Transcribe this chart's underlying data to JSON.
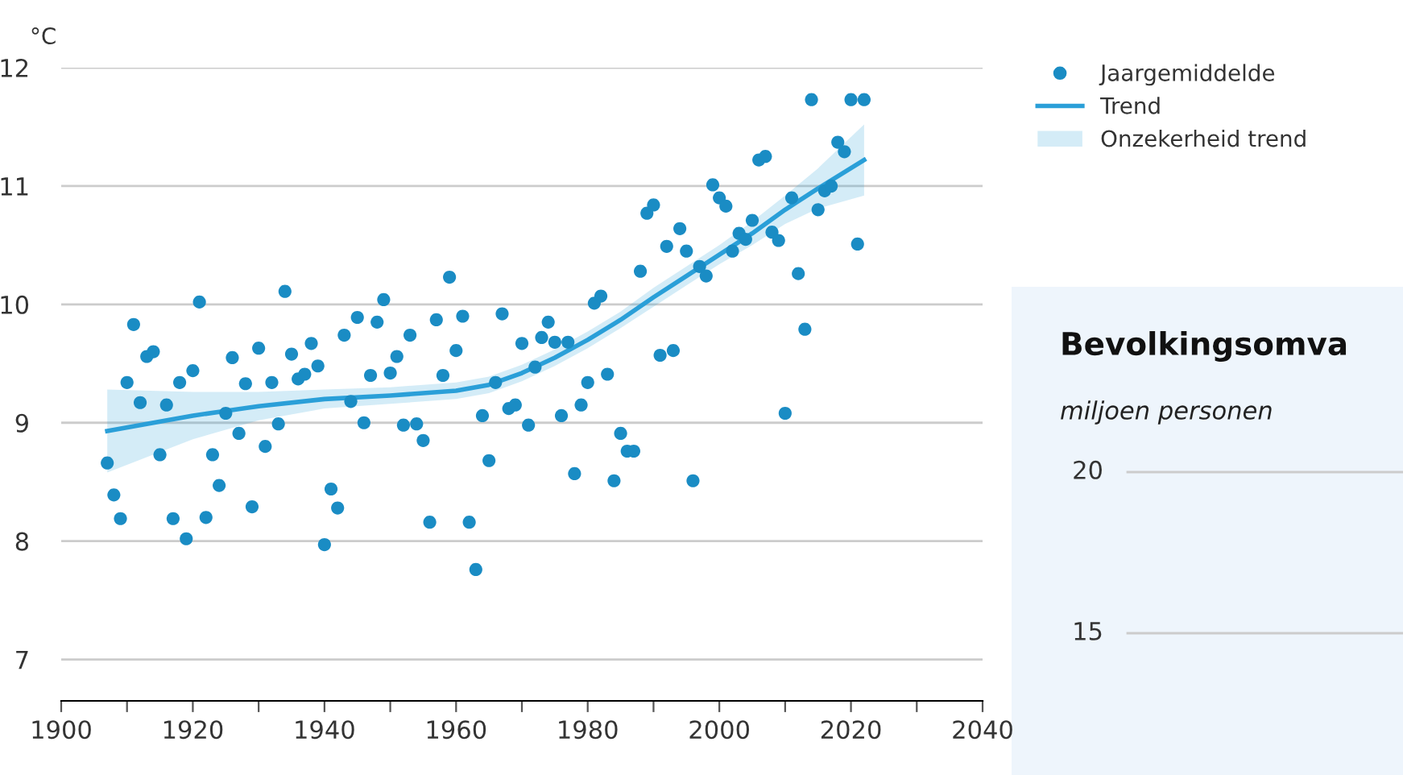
{
  "chart_data": [
    {
      "type": "scatter",
      "ylabel": "°C",
      "xlim": [
        1900,
        2040
      ],
      "ylim": [
        6.65,
        12
      ],
      "xticks": [
        1900,
        {
          "value": 1910,
          "label": null
        },
        1920,
        {
          "value": 1930,
          "label": null
        },
        1940,
        {
          "value": 1950,
          "label": null
        },
        1960,
        {
          "value": 1970,
          "label": null
        },
        1980,
        {
          "value": 1990,
          "label": null
        },
        2000,
        {
          "value": 2010,
          "label": null
        },
        2020,
        {
          "value": 2030,
          "label": null
        },
        2040
      ],
      "yticks": [
        7,
        8,
        9,
        10,
        11,
        12
      ],
      "grid": "y",
      "legend": "right",
      "annotations": [
        "Onzekerheid trend"
      ],
      "series": [
        {
          "name": "Trend",
          "type": "line",
          "color": "#2a9fd8",
          "x": [
            1907,
            1920,
            1930,
            1940,
            1950,
            1960,
            1965,
            1970,
            1975,
            1980,
            1985,
            1990,
            1995,
            2000,
            2005,
            2010,
            2015,
            2022
          ],
          "values": [
            8.93,
            9.06,
            9.14,
            9.2,
            9.23,
            9.27,
            9.32,
            9.42,
            9.55,
            9.7,
            9.87,
            10.06,
            10.24,
            10.42,
            10.6,
            10.8,
            10.98,
            11.22
          ],
          "lower": [
            8.58,
            8.86,
            9.02,
            9.12,
            9.16,
            9.2,
            9.25,
            9.35,
            9.48,
            9.63,
            9.8,
            9.98,
            10.16,
            10.34,
            10.5,
            10.68,
            10.81,
            10.92
          ],
          "upper": [
            9.28,
            9.26,
            9.26,
            9.28,
            9.3,
            9.34,
            9.39,
            9.49,
            9.62,
            9.77,
            9.94,
            10.14,
            10.32,
            10.5,
            10.7,
            10.92,
            11.15,
            11.52
          ]
        },
        {
          "name": "Jaargemiddelde",
          "color": "#1a8cc4",
          "marker": "circle",
          "x": [
            1907,
            1908,
            1909,
            1910,
            1911,
            1912,
            1913,
            1914,
            1915,
            1916,
            1917,
            1918,
            1919,
            1920,
            1921,
            1922,
            1923,
            1924,
            1925,
            1926,
            1927,
            1928,
            1929,
            1930,
            1931,
            1932,
            1933,
            1934,
            1935,
            1936,
            1937,
            1938,
            1939,
            1940,
            1941,
            1942,
            1943,
            1944,
            1945,
            1946,
            1947,
            1948,
            1949,
            1950,
            1951,
            1952,
            1953,
            1954,
            1955,
            1956,
            1957,
            1958,
            1959,
            1960,
            1961,
            1962,
            1963,
            1964,
            1965,
            1966,
            1967,
            1968,
            1969,
            1970,
            1971,
            1972,
            1973,
            1974,
            1975,
            1976,
            1977,
            1978,
            1979,
            1980,
            1981,
            1982,
            1983,
            1984,
            1985,
            1986,
            1987,
            1988,
            1989,
            1990,
            1991,
            1992,
            1993,
            1994,
            1995,
            1996,
            1997,
            1998,
            1999,
            2000,
            2001,
            2002,
            2003,
            2004,
            2005,
            2006,
            2007,
            2008,
            2009,
            2010,
            2011,
            2012,
            2013,
            2014,
            2015,
            2016,
            2017,
            2018,
            2019,
            2020,
            2021,
            2022
          ],
          "values": [
            8.66,
            8.39,
            8.19,
            9.34,
            9.83,
            9.17,
            9.56,
            9.6,
            8.73,
            9.15,
            8.19,
            9.34,
            8.02,
            9.44,
            10.02,
            8.2,
            8.73,
            8.47,
            9.08,
            9.55,
            8.91,
            9.33,
            8.29,
            9.63,
            8.8,
            9.34,
            8.99,
            10.11,
            9.58,
            9.37,
            9.41,
            9.67,
            9.48,
            7.97,
            8.44,
            8.28,
            9.74,
            9.18,
            9.89,
            9.0,
            9.4,
            9.85,
            10.04,
            9.42,
            9.56,
            8.98,
            9.74,
            8.99,
            8.85,
            8.16,
            9.87,
            9.4,
            10.23,
            9.61,
            9.9,
            8.16,
            7.76,
            9.06,
            8.68,
            9.34,
            9.92,
            9.12,
            9.15,
            9.67,
            8.98,
            9.47,
            9.72,
            9.85,
            9.68,
            9.06,
            9.68,
            8.57,
            9.15,
            9.34,
            10.01,
            10.07,
            9.41,
            8.51,
            8.91,
            8.76,
            8.76,
            10.28,
            10.77,
            10.84,
            9.57,
            10.49,
            9.61,
            10.64,
            10.45,
            8.51,
            10.32,
            10.24,
            11.01,
            10.9,
            10.83,
            10.45,
            10.6,
            10.55,
            10.71,
            11.22,
            11.25,
            10.61,
            10.54,
            9.08,
            10.9,
            10.26,
            9.79,
            11.73,
            10.8,
            10.96,
            11.0,
            11.37,
            11.29,
            11.73,
            10.51,
            11.73
          ]
        }
      ]
    },
    {
      "type": "other",
      "title": "Bevolkingsomva",
      "ylabel": "miljoen personen",
      "annotations": [
        "20",
        "15"
      ]
    }
  ]
}
